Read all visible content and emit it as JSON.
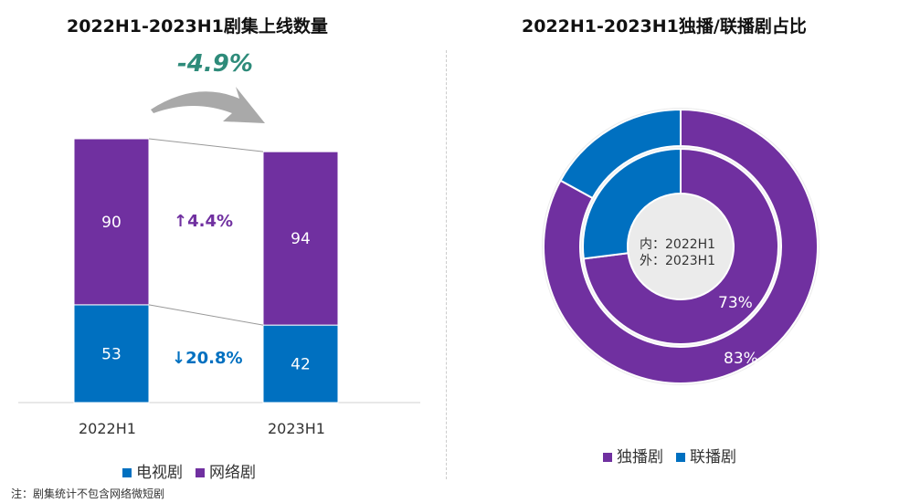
{
  "colors": {
    "tv": "#0070C0",
    "web": "#7030A0",
    "change": "#2E8B7A",
    "axis": "#d0d0d0"
  },
  "chart_data": [
    {
      "type": "bar",
      "stacked": true,
      "title": "2022H1-2023H1剧集上线数量",
      "categories": [
        "2022H1",
        "2023H1"
      ],
      "series": [
        {
          "name": "电视剧",
          "values": [
            53,
            42
          ]
        },
        {
          "name": "网络剧",
          "values": [
            90,
            94
          ]
        }
      ],
      "annotations": {
        "total_change": "-4.9%",
        "web_change": "↑4.4%",
        "tv_change": "↓20.8%"
      },
      "legend": "bottom"
    },
    {
      "type": "pie",
      "subtype": "nested-donut",
      "title": "2022H1-2023H1独播/联播剧占比",
      "center_label": [
        "内：2022H1",
        "外：2023H1"
      ],
      "categories": [
        "独播剧",
        "联播剧"
      ],
      "rings": [
        {
          "name": "2022H1",
          "position": "inner",
          "values": [
            73,
            27
          ],
          "label": "73%"
        },
        {
          "name": "2023H1",
          "position": "outer",
          "values": [
            83,
            17
          ],
          "label": "83%"
        }
      ],
      "legend": "bottom"
    }
  ],
  "note": "注：剧集统计不包含网络微短剧"
}
